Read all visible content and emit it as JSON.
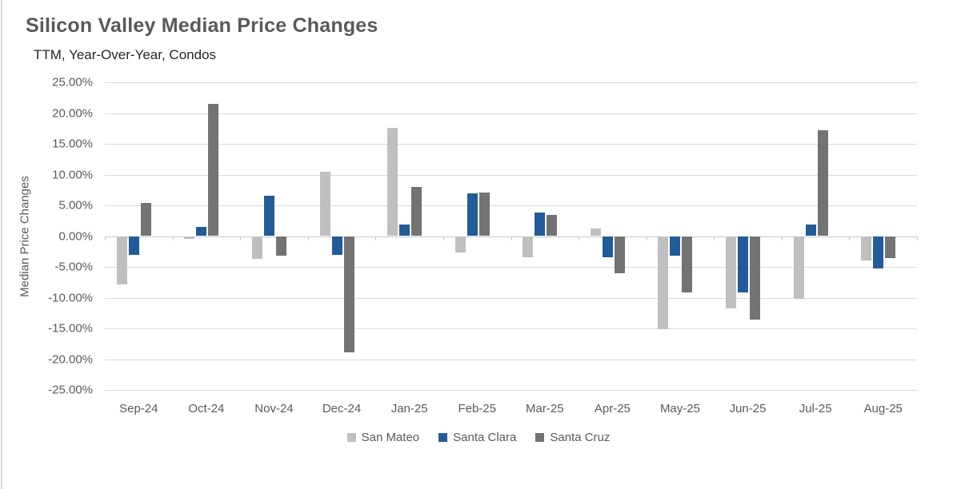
{
  "chart_data": {
    "type": "bar",
    "title": "Silicon Valley Median Price Changes",
    "subtitle": "TTM, Year-Over-Year, Condos",
    "ylabel": "Median Price Changes",
    "xlabel": "",
    "categories": [
      "Sep-24",
      "Oct-24",
      "Nov-24",
      "Dec-24",
      "Jan-25",
      "Feb-25",
      "Mar-25",
      "Apr-25",
      "May-25",
      "Jun-25",
      "Jul-25",
      "Aug-25"
    ],
    "series": [
      {
        "name": "San Mateo",
        "color": "#bfbfbf",
        "values": [
          -7.9,
          -0.5,
          -3.7,
          10.5,
          17.6,
          -2.7,
          -3.5,
          1.2,
          -15.1,
          -11.8,
          -10.2,
          -4.0
        ]
      },
      {
        "name": "Santa Clara",
        "color": "#215c98",
        "values": [
          -3.1,
          1.5,
          6.6,
          -3.0,
          1.9,
          7.0,
          3.8,
          -3.5,
          -3.2,
          -9.2,
          1.9,
          -5.3
        ]
      },
      {
        "name": "Santa Cruz",
        "color": "#737373",
        "values": [
          5.4,
          21.5,
          -3.2,
          -18.9,
          8.0,
          7.1,
          3.4,
          -6.0,
          -9.2,
          -13.6,
          17.2,
          -3.6
        ]
      }
    ],
    "ylim": [
      -25,
      25
    ],
    "y_tick_step": 5,
    "y_tick_values": [
      25,
      20,
      15,
      10,
      5,
      0,
      -5,
      -10,
      -15,
      -20,
      -25
    ],
    "y_tick_labels": [
      "25.00%",
      "20.00%",
      "15.00%",
      "10.00%",
      "5.00%",
      "0.00%",
      "-5.00%",
      "-10.00%",
      "-15.00%",
      "-20.00%",
      "-25.00%"
    ],
    "grid": true,
    "legend_position": "bottom",
    "unit": "%"
  },
  "colors": {
    "title_text": "#595959",
    "subtitle_text": "#262626",
    "axis_text": "#595959",
    "gridline": "#d9d9d9",
    "zero_axis": "#c6c6c6",
    "background": "#ffffff"
  }
}
